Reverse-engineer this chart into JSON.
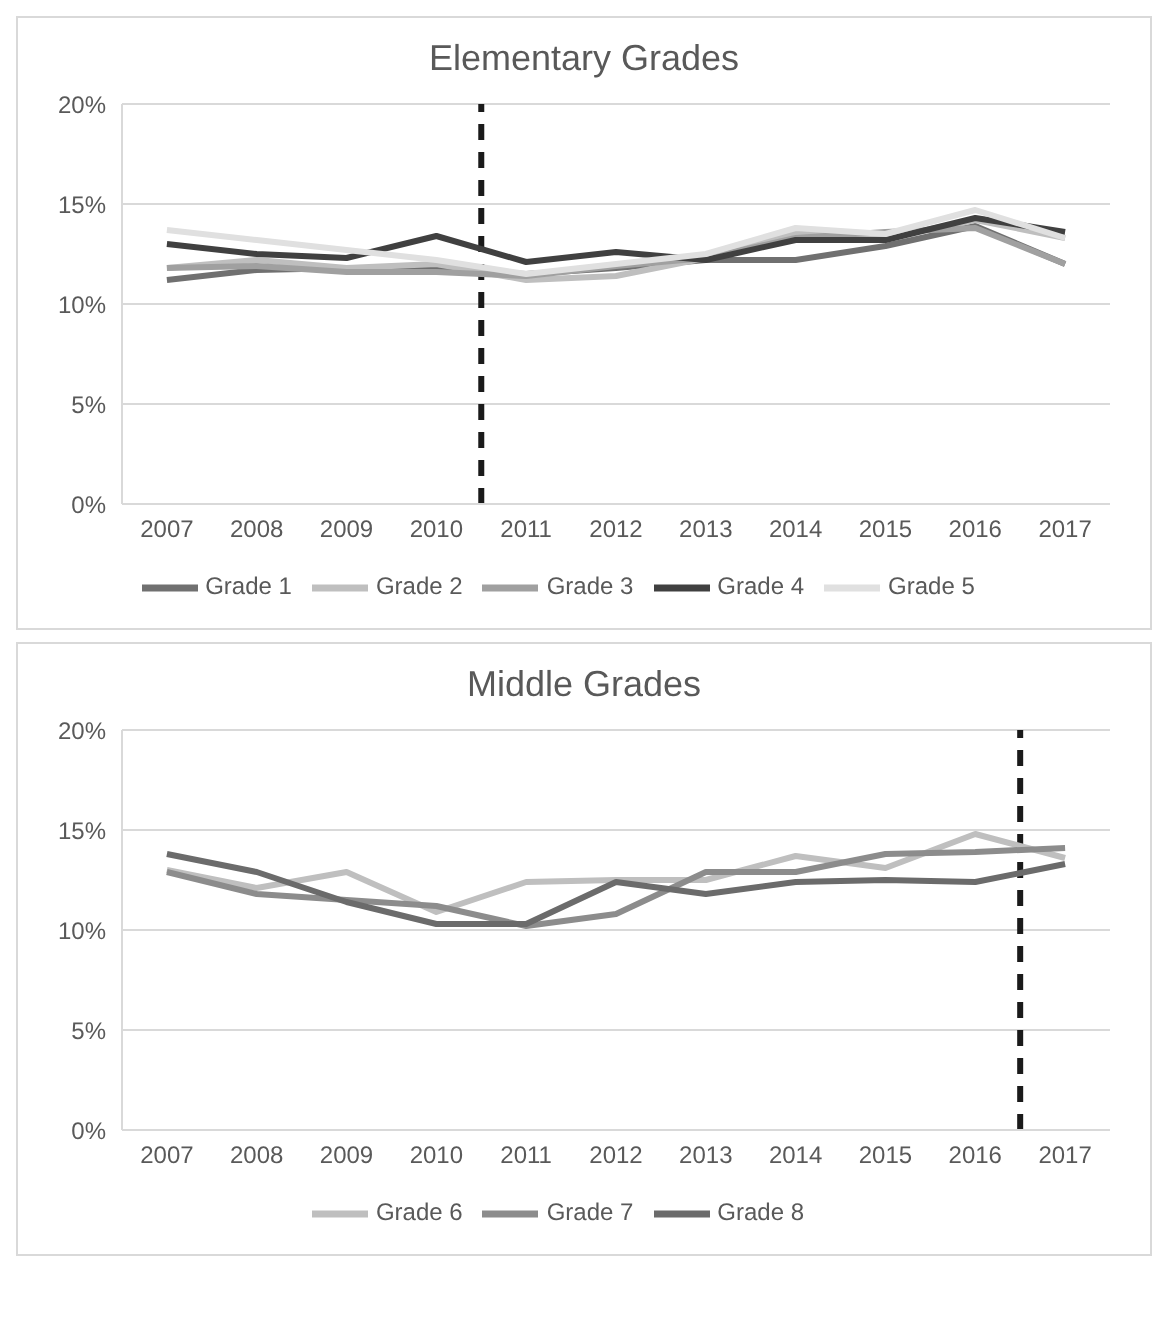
{
  "chart_data": [
    {
      "type": "line",
      "title": "Elementary Grades",
      "x": [
        2007,
        2008,
        2009,
        2010,
        2011,
        2012,
        2013,
        2014,
        2015,
        2016,
        2017
      ],
      "xlim": [
        2006.5,
        2017.5
      ],
      "xticks": [
        2007,
        2008,
        2009,
        2010,
        2011,
        2012,
        2013,
        2014,
        2015,
        2016,
        2017
      ],
      "ylim": [
        0,
        20
      ],
      "yticks": [
        {
          "value": 0,
          "label": "0%"
        },
        {
          "value": 5,
          "label": "5%"
        },
        {
          "value": 10,
          "label": "10%"
        },
        {
          "value": 15,
          "label": "15%"
        },
        {
          "value": 20,
          "label": "20%"
        }
      ],
      "grid": "y",
      "legend": "bottom",
      "marker": "none",
      "ref_lines": [
        {
          "axis": "x",
          "value": 2010.5,
          "color": "#1a1a1a",
          "line_style": "dashed"
        }
      ],
      "series": [
        {
          "name": "Grade 1",
          "color": "#707070",
          "values": [
            11.2,
            11.7,
            11.8,
            11.7,
            11.5,
            11.8,
            12.2,
            12.2,
            12.9,
            13.9,
            12.0
          ]
        },
        {
          "name": "Grade 2",
          "color": "#bfbfbf",
          "values": [
            11.8,
            12.2,
            11.8,
            12.0,
            11.2,
            11.4,
            12.3,
            13.6,
            13.3,
            14.2,
            13.3
          ]
        },
        {
          "name": "Grade 3",
          "color": "#a0a0a0",
          "values": [
            11.8,
            11.9,
            11.6,
            11.6,
            11.4,
            11.9,
            12.3,
            13.3,
            13.6,
            13.8,
            12.0
          ]
        },
        {
          "name": "Grade 4",
          "color": "#404040",
          "values": [
            13.0,
            12.5,
            12.3,
            13.4,
            12.1,
            12.6,
            12.2,
            13.2,
            13.2,
            14.3,
            13.6
          ]
        },
        {
          "name": "Grade 5",
          "color": "#e0e0e0",
          "values": [
            13.7,
            13.2,
            12.7,
            12.2,
            11.5,
            12.0,
            12.5,
            13.8,
            13.5,
            14.7,
            13.3
          ]
        }
      ]
    },
    {
      "type": "line",
      "title": "Middle Grades",
      "x": [
        2007,
        2008,
        2009,
        2010,
        2011,
        2012,
        2013,
        2014,
        2015,
        2016,
        2017
      ],
      "xlim": [
        2006.5,
        2017.5
      ],
      "xticks": [
        2007,
        2008,
        2009,
        2010,
        2011,
        2012,
        2013,
        2014,
        2015,
        2016,
        2017
      ],
      "ylim": [
        0,
        20
      ],
      "yticks": [
        {
          "value": 0,
          "label": "0%"
        },
        {
          "value": 5,
          "label": "5%"
        },
        {
          "value": 10,
          "label": "10%"
        },
        {
          "value": 15,
          "label": "15%"
        },
        {
          "value": 20,
          "label": "20%"
        }
      ],
      "grid": "y",
      "legend": "bottom",
      "marker": "none",
      "ref_lines": [
        {
          "axis": "x",
          "value": 2016.5,
          "color": "#1a1a1a",
          "line_style": "dashed"
        }
      ],
      "series": [
        {
          "name": "Grade 6",
          "color": "#bfbfbf",
          "values": [
            13.0,
            12.1,
            12.9,
            10.9,
            12.4,
            12.5,
            12.5,
            13.7,
            13.1,
            14.8,
            13.6
          ]
        },
        {
          "name": "Grade 7",
          "color": "#8c8c8c",
          "values": [
            12.9,
            11.8,
            11.5,
            11.2,
            10.2,
            10.8,
            12.9,
            12.9,
            13.8,
            13.9,
            14.1
          ]
        },
        {
          "name": "Grade 8",
          "color": "#6b6b6b",
          "values": [
            13.8,
            12.9,
            11.4,
            10.3,
            10.3,
            12.4,
            11.8,
            12.4,
            12.5,
            12.4,
            13.3
          ]
        }
      ]
    }
  ]
}
